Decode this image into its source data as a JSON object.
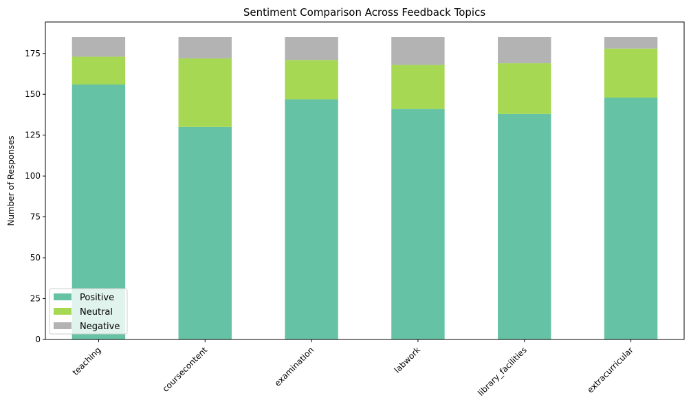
{
  "chart_data": {
    "type": "bar",
    "stacked": true,
    "title": "Sentiment Comparison Across Feedback Topics",
    "xlabel": "",
    "ylabel": "Number of Responses",
    "ylim": [
      0,
      194.25
    ],
    "yticks": [
      0,
      25,
      50,
      75,
      100,
      125,
      150,
      175
    ],
    "categories": [
      "teaching",
      "coursecontent",
      "examination",
      "labwork",
      "library_facilities",
      "extracurricular"
    ],
    "series": [
      {
        "name": "Positive",
        "color": "#66c2a5",
        "values": [
          156,
          130,
          147,
          141,
          138,
          148
        ]
      },
      {
        "name": "Neutral",
        "color": "#a6d854",
        "values": [
          17,
          42,
          24,
          27,
          31,
          30
        ]
      },
      {
        "name": "Negative",
        "color": "#b3b3b3",
        "values": [
          12,
          13,
          14,
          17,
          16,
          7
        ]
      }
    ],
    "legend_position": "lower-left",
    "grid": false,
    "xtick_rotation": 45
  }
}
